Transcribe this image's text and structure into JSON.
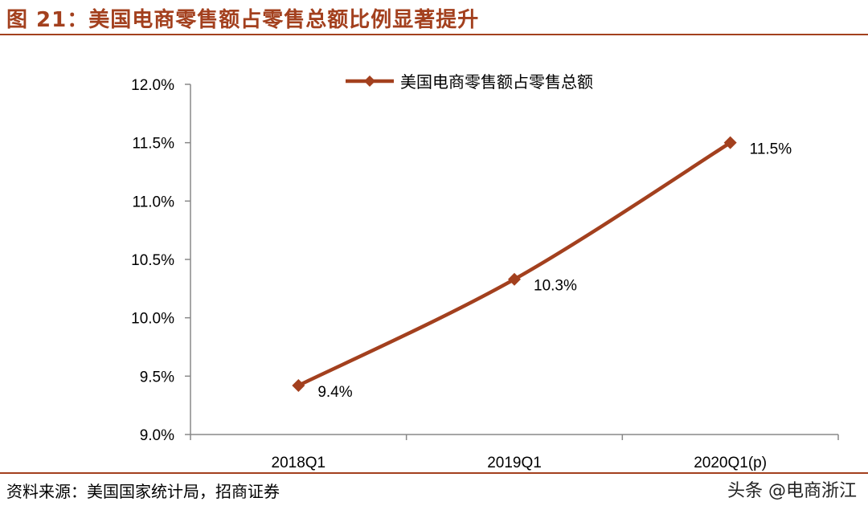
{
  "figure": {
    "title": "图 21：美国电商零售额占零售总额比例显著提升",
    "source": "资料来源：美国国家统计局，招商证券",
    "watermark": "头条 @电商浙江"
  },
  "colors": {
    "accent": "#a3401e",
    "series_line": "#a3401e",
    "axis": "#888888"
  },
  "chart_data": {
    "type": "line",
    "title": "",
    "xlabel": "",
    "ylabel": "",
    "categories": [
      "2018Q1",
      "2019Q1",
      "2020Q1(p)"
    ],
    "series": [
      {
        "name": "美国电商零售额占零售总额",
        "values": [
          9.42,
          10.33,
          11.5
        ],
        "labels": [
          "9.4%",
          "10.3%",
          "11.5%"
        ],
        "marker": "diamond"
      }
    ],
    "ylim": [
      9.0,
      12.0
    ],
    "yticks": [
      9.0,
      9.5,
      10.0,
      10.5,
      11.0,
      11.5,
      12.0
    ],
    "ytick_labels": [
      "9.0%",
      "9.5%",
      "10.0%",
      "10.5%",
      "11.0%",
      "11.5%",
      "12.0%"
    ],
    "grid": false,
    "legend": "top-center"
  }
}
